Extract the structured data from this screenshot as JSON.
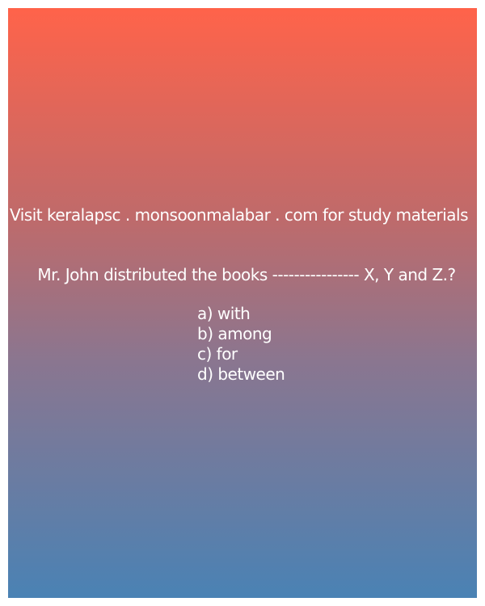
{
  "promo": {
    "text": "Visit keralapsc . monsoonmalabar . com for study materials"
  },
  "question": {
    "text": "Mr. John distributed the books ---------------- X, Y and Z.?"
  },
  "options": [
    "a) with",
    "b) among",
    "c) for",
    "d) between"
  ],
  "colors": {
    "gradient_top": "#ff634a",
    "gradient_bottom": "#4a82b4",
    "text": "#ffffff"
  }
}
